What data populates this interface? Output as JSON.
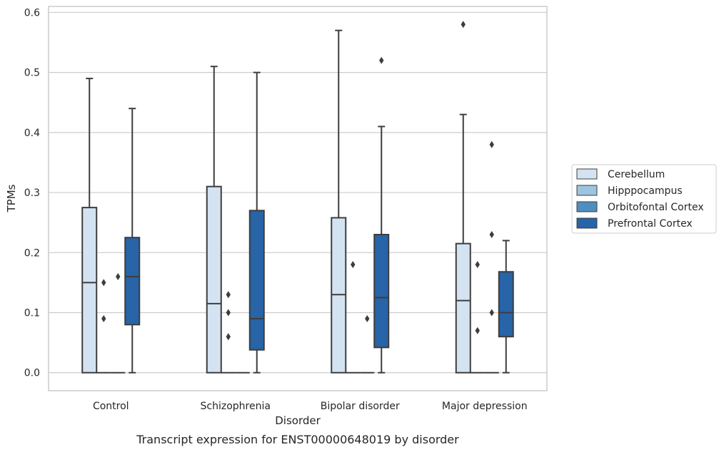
{
  "chart_data": {
    "type": "box",
    "title": "",
    "caption": "Transcript expression for ENST00000648019 by disorder",
    "xlabel": "Disorder",
    "ylabel": "TPMs",
    "ylim": [
      -0.03,
      0.61
    ],
    "yticks": [
      "0.0",
      "0.1",
      "0.2",
      "0.3",
      "0.4",
      "0.5",
      "0.6"
    ],
    "ytick_values": [
      0.0,
      0.1,
      0.2,
      0.3,
      0.4,
      0.5,
      0.6
    ],
    "grid": "horizontal",
    "legend_position": "right",
    "categories": [
      "Control",
      "Schizophrenia",
      "Bipolar disorder",
      "Major depression"
    ],
    "series": [
      {
        "name": "Cerebellum",
        "color": "#d4e3f1",
        "boxes": [
          {
            "q1": 0.0,
            "median": 0.15,
            "q3": 0.275,
            "whisker_low": 0.0,
            "whisker_high": 0.49,
            "outliers": []
          },
          {
            "q1": 0.0,
            "median": 0.115,
            "q3": 0.31,
            "whisker_low": 0.0,
            "whisker_high": 0.51,
            "outliers": []
          },
          {
            "q1": 0.0,
            "median": 0.13,
            "q3": 0.258,
            "whisker_low": 0.0,
            "whisker_high": 0.57,
            "outliers": []
          },
          {
            "q1": 0.0,
            "median": 0.12,
            "q3": 0.215,
            "whisker_low": 0.0,
            "whisker_high": 0.43,
            "outliers": [
              0.58
            ]
          }
        ]
      },
      {
        "name": "Hipppocampus",
        "color": "#9dc4de",
        "boxes": [
          {
            "q1": 0.0,
            "median": 0.0,
            "q3": 0.0,
            "whisker_low": 0.0,
            "whisker_high": 0.0,
            "outliers": [
              0.15,
              0.09
            ]
          },
          {
            "q1": 0.0,
            "median": 0.0,
            "q3": 0.0,
            "whisker_low": 0.0,
            "whisker_high": 0.0,
            "outliers": [
              0.13,
              0.1,
              0.06
            ]
          },
          {
            "q1": 0.0,
            "median": 0.0,
            "q3": 0.0,
            "whisker_low": 0.0,
            "whisker_high": 0.0,
            "outliers": [
              0.18
            ]
          },
          {
            "q1": 0.0,
            "median": 0.0,
            "q3": 0.0,
            "whisker_low": 0.0,
            "whisker_high": 0.0,
            "outliers": [
              0.18,
              0.07
            ]
          }
        ]
      },
      {
        "name": "Orbitofontal Cortex",
        "color": "#4f8fbf",
        "boxes": [
          {
            "q1": 0.0,
            "median": 0.0,
            "q3": 0.0,
            "whisker_low": 0.0,
            "whisker_high": 0.0,
            "outliers": [
              0.16
            ]
          },
          {
            "q1": 0.0,
            "median": 0.0,
            "q3": 0.0,
            "whisker_low": 0.0,
            "whisker_high": 0.0,
            "outliers": []
          },
          {
            "q1": 0.0,
            "median": 0.0,
            "q3": 0.0,
            "whisker_low": 0.0,
            "whisker_high": 0.0,
            "outliers": [
              0.09
            ]
          },
          {
            "q1": 0.0,
            "median": 0.0,
            "q3": 0.0,
            "whisker_low": 0.0,
            "whisker_high": 0.0,
            "outliers": [
              0.38,
              0.23,
              0.1
            ]
          }
        ]
      },
      {
        "name": "Prefrontal Cortex",
        "color": "#2764a8",
        "boxes": [
          {
            "q1": 0.08,
            "median": 0.16,
            "q3": 0.225,
            "whisker_low": 0.0,
            "whisker_high": 0.44,
            "outliers": []
          },
          {
            "q1": 0.038,
            "median": 0.09,
            "q3": 0.27,
            "whisker_low": 0.0,
            "whisker_high": 0.5,
            "outliers": []
          },
          {
            "q1": 0.042,
            "median": 0.125,
            "q3": 0.23,
            "whisker_low": 0.0,
            "whisker_high": 0.41,
            "outliers": [
              0.52
            ]
          },
          {
            "q1": 0.06,
            "median": 0.1,
            "q3": 0.168,
            "whisker_low": 0.0,
            "whisker_high": 0.22,
            "outliers": []
          }
        ]
      }
    ]
  }
}
